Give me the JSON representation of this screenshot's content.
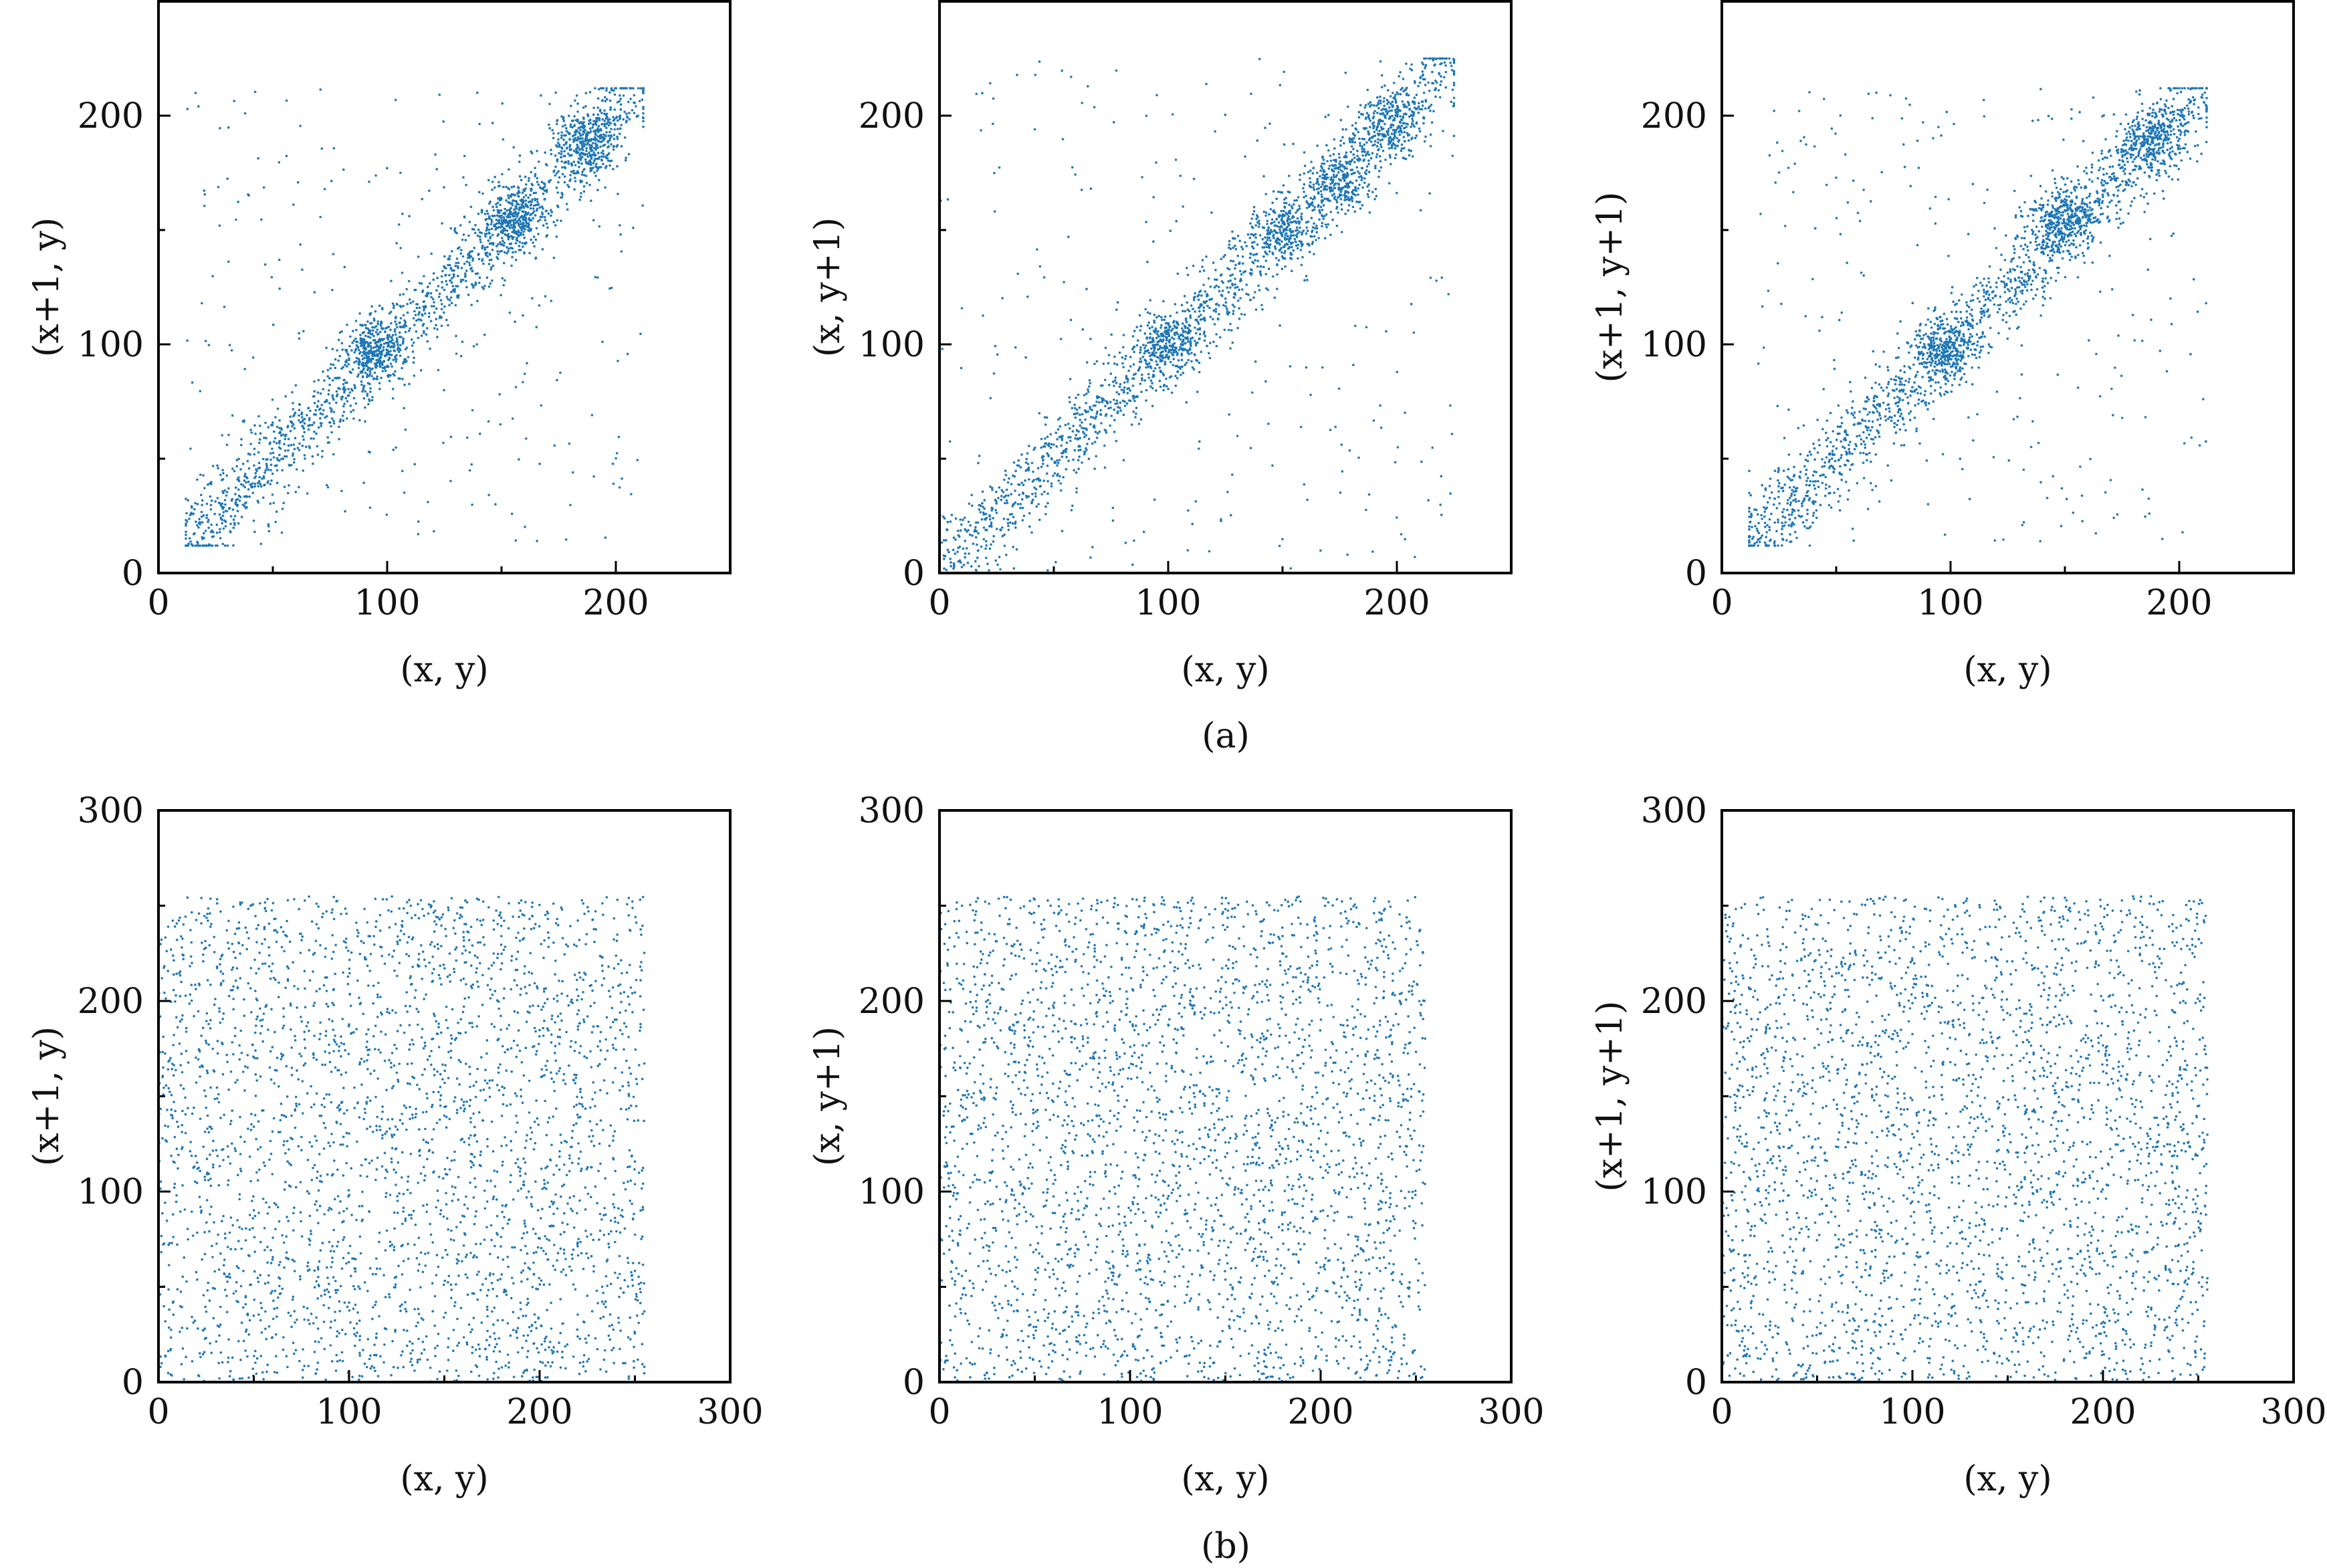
{
  "figure": {
    "captions": [
      "(a)",
      "(b)"
    ]
  },
  "style": {
    "point_color": "#1f77b4",
    "axis_color": "#000000",
    "background": "#ffffff"
  },
  "chart_data": [
    {
      "type": "scatter",
      "group": "(a)",
      "xlabel": "(x, y)",
      "ylabel": "(x+1, y)",
      "xlim": [
        0,
        250
      ],
      "ylim": [
        0,
        250
      ],
      "xticks": [
        0,
        100,
        200
      ],
      "yticks": [
        0,
        100,
        200
      ],
      "xminor": [
        50,
        150,
        250
      ],
      "yminor": [
        50,
        150,
        250
      ],
      "distribution": "correlated",
      "point_count": 2600,
      "data_range": [
        12,
        212
      ],
      "dense_clusters": [
        [
          95,
          97
        ],
        [
          155,
          155
        ],
        [
          188,
          190
        ]
      ],
      "points_sample": [
        [
          12,
          12
        ],
        [
          25,
          24
        ],
        [
          40,
          38
        ],
        [
          60,
          62
        ],
        [
          80,
          82
        ],
        [
          95,
          97
        ],
        [
          100,
          100
        ],
        [
          120,
          118
        ],
        [
          140,
          142
        ],
        [
          155,
          155
        ],
        [
          170,
          168
        ],
        [
          188,
          190
        ],
        [
          205,
          207
        ]
      ]
    },
    {
      "type": "scatter",
      "group": "(a)",
      "xlabel": "(x, y)",
      "ylabel": "(x, y+1)",
      "xlim": [
        0,
        250
      ],
      "ylim": [
        0,
        250
      ],
      "xticks": [
        0,
        100,
        200
      ],
      "yticks": [
        0,
        100,
        200
      ],
      "xminor": [
        50,
        150,
        250
      ],
      "yminor": [
        50,
        150,
        250
      ],
      "distribution": "correlated",
      "point_count": 2600,
      "data_range": [
        0,
        225
      ],
      "dense_clusters": [
        [
          100,
          100
        ],
        [
          150,
          150
        ],
        [
          175,
          170
        ],
        [
          198,
          195
        ]
      ],
      "points_sample": [
        [
          2,
          4
        ],
        [
          20,
          20
        ],
        [
          35,
          33
        ],
        [
          60,
          60
        ],
        [
          80,
          80
        ],
        [
          100,
          100
        ],
        [
          120,
          122
        ],
        [
          150,
          150
        ],
        [
          175,
          170
        ],
        [
          198,
          195
        ],
        [
          220,
          215
        ]
      ]
    },
    {
      "type": "scatter",
      "group": "(a)",
      "xlabel": "(x, y)",
      "ylabel": "(x+1, y+1)",
      "xlim": [
        0,
        250
      ],
      "ylim": [
        0,
        250
      ],
      "xticks": [
        0,
        100,
        200
      ],
      "yticks": [
        0,
        100,
        200
      ],
      "xminor": [
        50,
        150,
        250
      ],
      "yminor": [
        50,
        150,
        250
      ],
      "distribution": "correlated",
      "point_count": 2600,
      "data_range": [
        12,
        212
      ],
      "dense_clusters": [
        [
          97,
          98
        ],
        [
          150,
          155
        ],
        [
          188,
          190
        ]
      ],
      "points_sample": [
        [
          14,
          14
        ],
        [
          30,
          32
        ],
        [
          40,
          38
        ],
        [
          65,
          65
        ],
        [
          85,
          87
        ],
        [
          97,
          98
        ],
        [
          120,
          120
        ],
        [
          150,
          155
        ],
        [
          170,
          170
        ],
        [
          188,
          190
        ],
        [
          205,
          205
        ]
      ]
    },
    {
      "type": "scatter",
      "group": "(b)",
      "xlabel": "(x, y)",
      "ylabel": "(x+1, y)",
      "xlim": [
        0,
        300
      ],
      "ylim": [
        0,
        300
      ],
      "xticks": [
        0,
        100,
        200,
        300
      ],
      "yticks": [
        0,
        100,
        200,
        300
      ],
      "xminor": [
        50,
        150,
        250
      ],
      "yminor": [
        50,
        150,
        250
      ],
      "distribution": "uniform",
      "point_count": 3000,
      "data_range": [
        0,
        255
      ]
    },
    {
      "type": "scatter",
      "group": "(b)",
      "xlabel": "(x, y)",
      "ylabel": "(x, y+1)",
      "xlim": [
        0,
        300
      ],
      "ylim": [
        0,
        300
      ],
      "xticks": [
        0,
        100,
        200,
        300
      ],
      "yticks": [
        0,
        100,
        200,
        300
      ],
      "xminor": [
        50,
        150,
        250
      ],
      "yminor": [
        50,
        150,
        250
      ],
      "distribution": "uniform",
      "point_count": 3000,
      "data_range": [
        0,
        255
      ]
    },
    {
      "type": "scatter",
      "group": "(b)",
      "xlabel": "(x, y)",
      "ylabel": "(x+1, y+1)",
      "xlim": [
        0,
        300
      ],
      "ylim": [
        0,
        300
      ],
      "xticks": [
        0,
        100,
        200,
        300
      ],
      "yticks": [
        0,
        100,
        200,
        300
      ],
      "xminor": [
        50,
        150,
        250
      ],
      "yminor": [
        50,
        150,
        250
      ],
      "distribution": "uniform",
      "point_count": 3000,
      "data_range": [
        0,
        255
      ]
    }
  ]
}
